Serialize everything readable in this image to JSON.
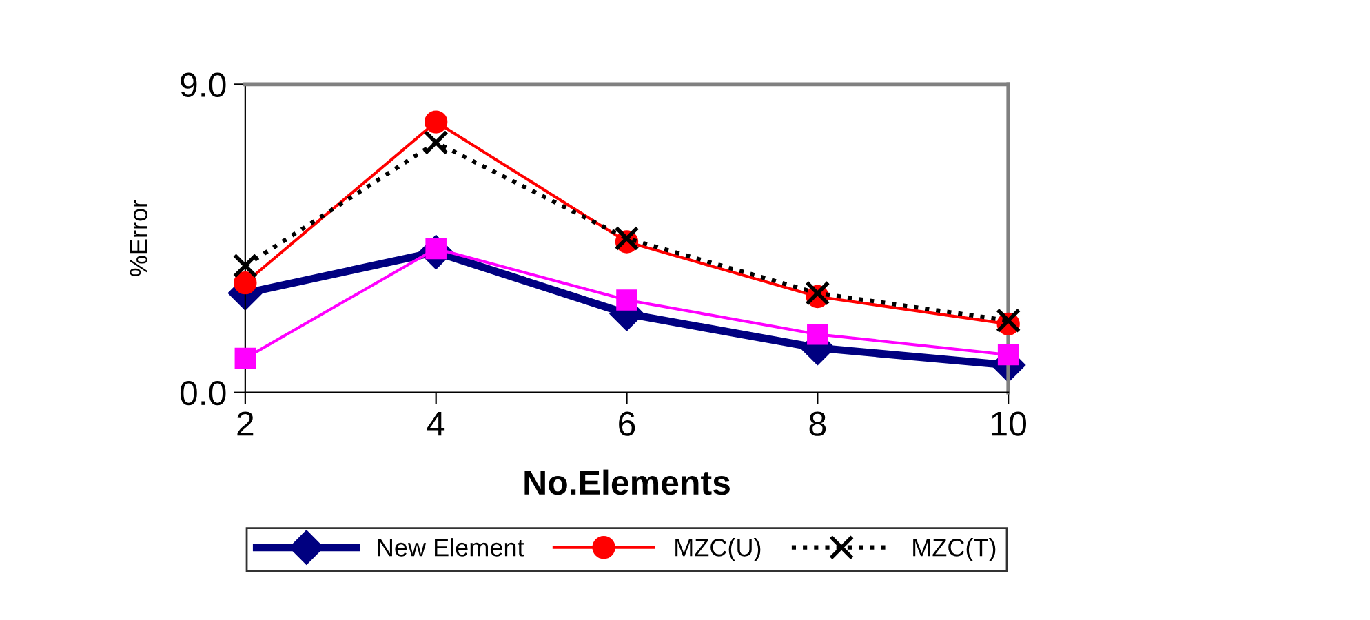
{
  "chart_data": {
    "type": "line",
    "xlabel": "No.Elements",
    "ylabel": "%Error",
    "x": [
      2,
      4,
      6,
      8,
      10
    ],
    "xlim": [
      2,
      10
    ],
    "xticks": [
      2,
      4,
      6,
      8,
      10
    ],
    "ylim": [
      0,
      9
    ],
    "yticks": [
      {
        "value": 0,
        "label": "0.0"
      },
      {
        "value": 9,
        "label": "9.0"
      }
    ],
    "grid": false,
    "legend": "bottom",
    "series": [
      {
        "name": "New Element",
        "color": "#000080",
        "marker": "diamond",
        "line_style": "solid",
        "values": [
          2.9,
          4.1,
          2.3,
          1.3,
          0.8
        ]
      },
      {
        "color": "#ff00ff",
        "marker": "square",
        "line_style": "solid",
        "values": [
          1.0,
          4.2,
          2.7,
          1.7,
          1.1
        ]
      },
      {
        "name": "MZC(U)",
        "color": "#ff0000",
        "marker": "circle",
        "line_style": "solid",
        "values": [
          3.2,
          7.9,
          4.4,
          2.8,
          2.0
        ]
      },
      {
        "name": "MZC(T)",
        "color": "#000000",
        "marker": "cross",
        "line_style": "dotted",
        "values": [
          3.7,
          7.3,
          4.5,
          2.9,
          2.1
        ]
      }
    ]
  }
}
